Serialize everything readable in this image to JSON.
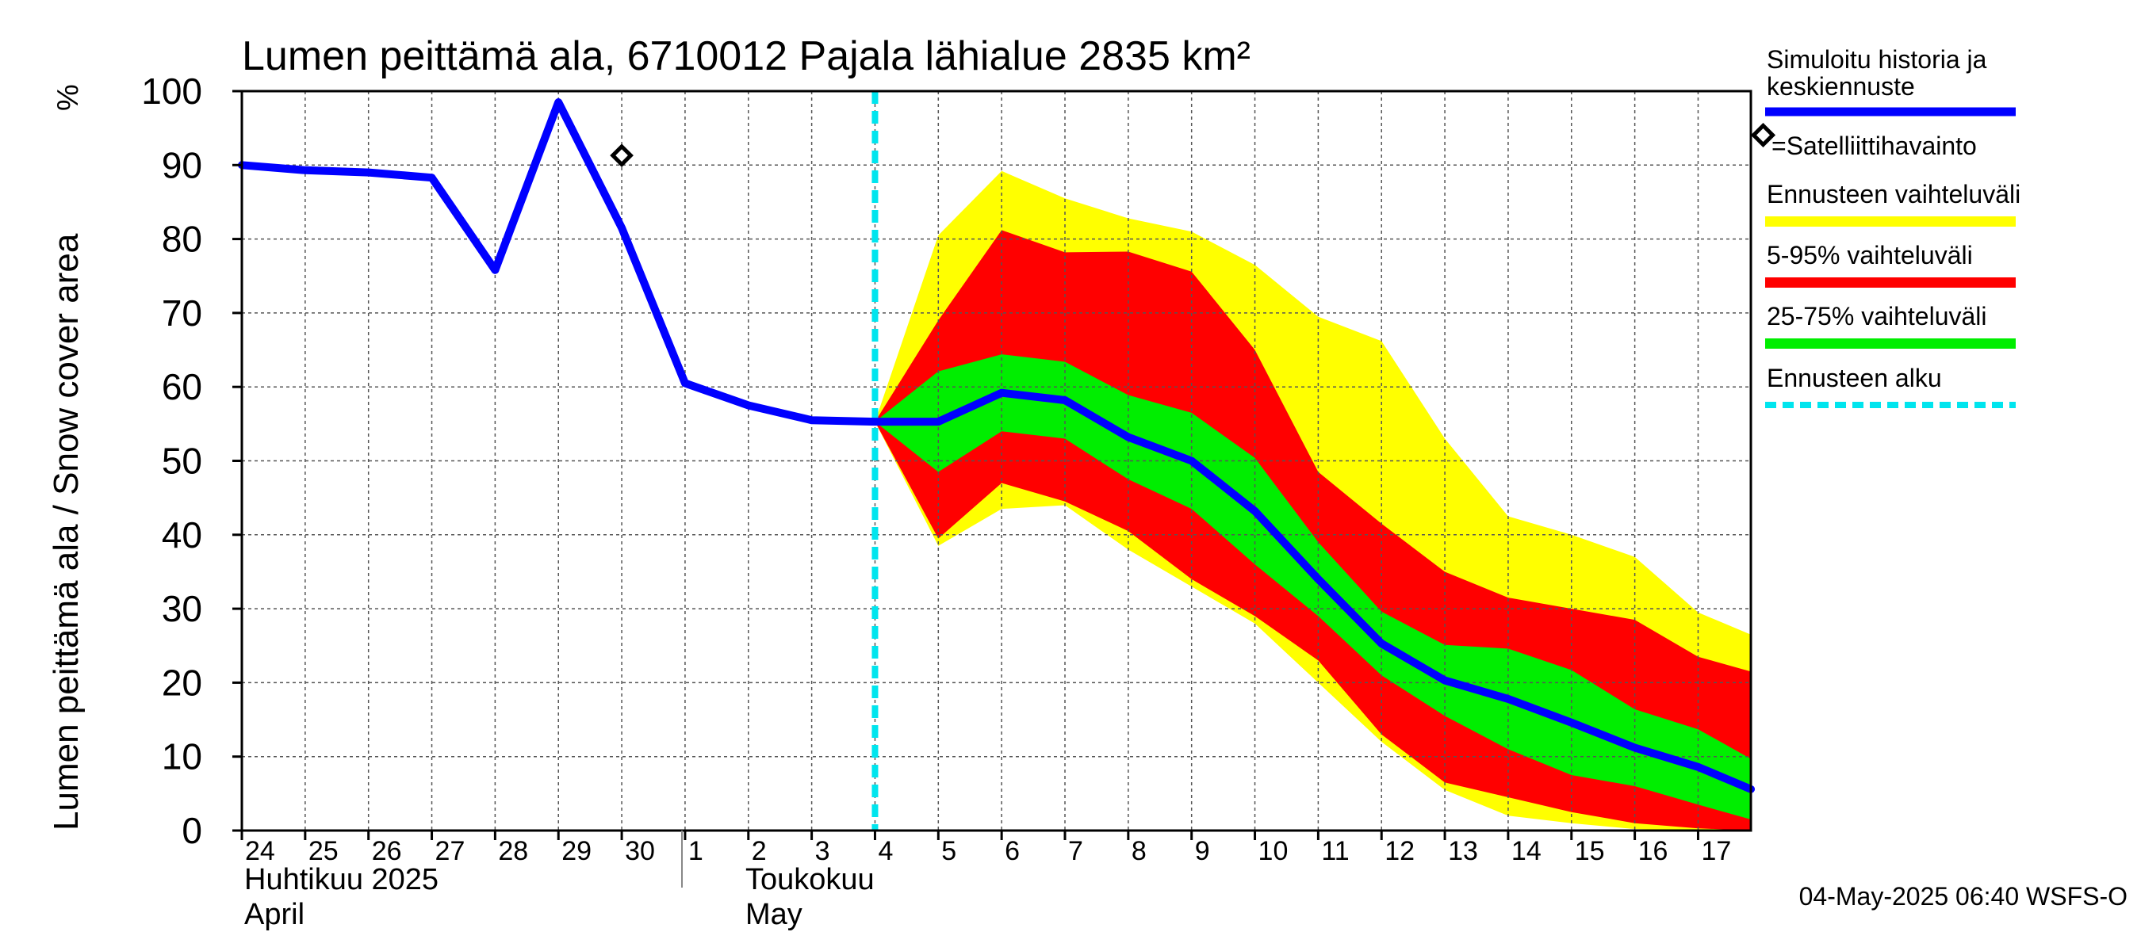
{
  "chart_data": {
    "type": "area",
    "title": "Lumen peittämä ala, 6710012 Pajala lähialue 2835 km²",
    "ylabel": "Lumen peittämä ala / Snow cover area",
    "yunit": "%",
    "ylim": [
      0,
      100
    ],
    "yticks": [
      0,
      10,
      20,
      30,
      40,
      50,
      60,
      70,
      80,
      90,
      100
    ],
    "xlim": [
      "2025-04-24",
      "2025-05-17T20:00"
    ],
    "x_tick_labels": [
      "24",
      "25",
      "26",
      "27",
      "28",
      "29",
      "30",
      "1",
      "2",
      "3",
      "4",
      "5",
      "6",
      "7",
      "8",
      "9",
      "10",
      "11",
      "12",
      "13",
      "14",
      "15",
      "16",
      "17"
    ],
    "month_labels": [
      {
        "line1": "Huhtikuu  2025",
        "line2": "April"
      },
      {
        "line1": "Toukokuu",
        "line2": "May"
      }
    ],
    "grid": true,
    "forecast_start": "2025-05-04",
    "history": {
      "name": "Simuloitu historia ja keskiennuste",
      "x": [
        "2025-04-24",
        "2025-04-25",
        "2025-04-26",
        "2025-04-27",
        "2025-04-28",
        "2025-04-29",
        "2025-04-30",
        "2025-05-01",
        "2025-05-02",
        "2025-05-03",
        "2025-05-04",
        "2025-05-05",
        "2025-05-06",
        "2025-05-07",
        "2025-05-08",
        "2025-05-09",
        "2025-05-10",
        "2025-05-11",
        "2025-05-12",
        "2025-05-13",
        "2025-05-14",
        "2025-05-15",
        "2025-05-16",
        "2025-05-17",
        "2025-05-17T20:00"
      ],
      "y": [
        90,
        89.3,
        89,
        88.3,
        75.8,
        98.5,
        81.5,
        60.5,
        57.5,
        55.5,
        55.3,
        55.3,
        59.2,
        58.2,
        53.2,
        50,
        43.2,
        34,
        25.3,
        20.3,
        17.8,
        14.6,
        11.2,
        8.6,
        5.6
      ]
    },
    "satellite_observations": [
      {
        "x": "2025-04-30",
        "y": 91.3
      }
    ],
    "bands": {
      "x": [
        "2025-05-04",
        "2025-05-05",
        "2025-05-06",
        "2025-05-07",
        "2025-05-08",
        "2025-05-09",
        "2025-05-10",
        "2025-05-11",
        "2025-05-12",
        "2025-05-13",
        "2025-05-14",
        "2025-05-15",
        "2025-05-16",
        "2025-05-17",
        "2025-05-17T20:00"
      ],
      "range": {
        "lower": [
          55.3,
          38.5,
          43.5,
          44,
          38,
          33,
          28,
          20,
          12,
          5.5,
          2,
          1,
          0.2,
          0,
          0
        ],
        "upper": [
          55.3,
          80.5,
          89.2,
          85.5,
          82.8,
          81,
          76.5,
          69.5,
          66.2,
          53,
          42.5,
          40,
          37,
          29.5,
          26.5
        ]
      },
      "p5_95": {
        "lower": [
          55.3,
          39.5,
          47,
          44.5,
          40.5,
          34,
          29,
          23,
          13,
          6.5,
          4.5,
          2.5,
          1,
          0.3,
          0
        ],
        "upper": [
          55.3,
          69,
          81.2,
          78.2,
          78.3,
          75.6,
          65,
          48.5,
          41.5,
          35,
          31.5,
          30,
          28.5,
          23.5,
          21.5
        ]
      },
      "p25_75": {
        "lower": [
          55.3,
          48.5,
          54,
          53,
          47.5,
          43.5,
          36,
          29,
          21,
          15.5,
          11,
          7.5,
          6,
          3.5,
          1.5
        ]
      }
    },
    "legend": [
      {
        "label": "Simuloitu historia ja keskiennuste",
        "color": "#0000ff"
      },
      {
        "label": "=Satelliittihavainto",
        "color": "#000000"
      },
      {
        "label": "Ennusteen vaihteluväli",
        "color": "#ffff00"
      },
      {
        "label": "5-95% vaihteluväli",
        "color": "#ff0000"
      },
      {
        "label": "25-75% vaihteluväli",
        "color": "#00ee00"
      },
      {
        "label": "Ennusteen alku",
        "color": "#00e5ee"
      }
    ],
    "legend_position": "right",
    "colors": {
      "history": "#0000ff",
      "range": "#ffff00",
      "p5_95": "#ff0000",
      "p25_75": "#00ee00",
      "forecast_start": "#00e5ee",
      "grid": "#555555"
    }
  },
  "footer": "04-May-2025 06:40 WSFS-O"
}
